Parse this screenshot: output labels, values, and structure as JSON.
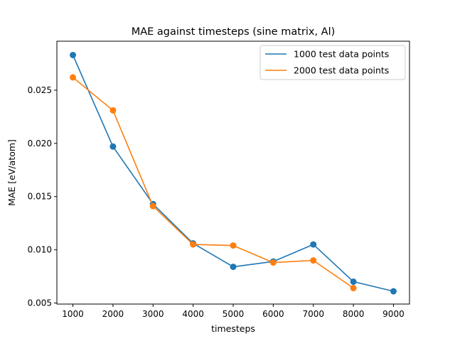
{
  "chart_data": {
    "type": "line",
    "title": "MAE against timesteps (sine matrix, Al)",
    "xlabel": "timesteps",
    "ylabel": "MAE [eV/atom]",
    "xlim": [
      600,
      9400
    ],
    "ylim": [
      0.0049,
      0.0296
    ],
    "xticks": [
      1000,
      2000,
      3000,
      4000,
      5000,
      6000,
      7000,
      8000,
      9000
    ],
    "xtick_labels": [
      "1000",
      "2000",
      "3000",
      "4000",
      "5000",
      "6000",
      "7000",
      "8000",
      "9000"
    ],
    "yticks": [
      0.005,
      0.01,
      0.015,
      0.02,
      0.025
    ],
    "ytick_labels": [
      "0.005",
      "0.010",
      "0.015",
      "0.020",
      "0.025"
    ],
    "grid": false,
    "legend_position": "top-right",
    "markers": true,
    "series": [
      {
        "name": "1000 test data points",
        "color": "#1f77b4",
        "x": [
          1000,
          2000,
          3000,
          4000,
          5000,
          6000,
          7000,
          8000,
          9000
        ],
        "values": [
          0.0283,
          0.0197,
          0.0143,
          0.0106,
          0.0084,
          0.0089,
          0.0105,
          0.007,
          0.0061
        ]
      },
      {
        "name": "2000 test data points",
        "color": "#ff7f0e",
        "x": [
          1000,
          2000,
          3000,
          4000,
          5000,
          6000,
          7000,
          8000
        ],
        "values": [
          0.0262,
          0.0231,
          0.0141,
          0.0105,
          0.0104,
          0.0088,
          0.009,
          0.0064
        ]
      }
    ]
  }
}
